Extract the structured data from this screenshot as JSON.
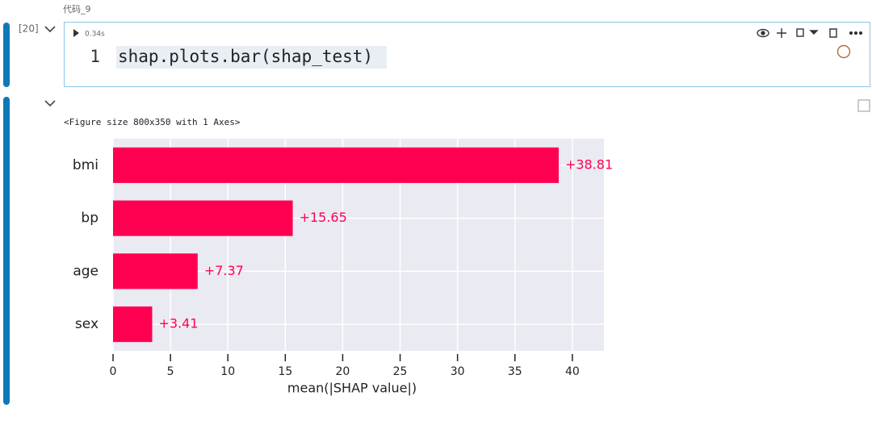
{
  "cell": {
    "label": "代码_9",
    "exec_count": "[20]",
    "time": "0.34s",
    "line_no": "1",
    "code": "shap.plots.bar(shap_test)"
  },
  "output": {
    "text": "<Figure size 800x350 with 1 Axes>"
  },
  "chart_data": {
    "type": "hbar",
    "categories": [
      "bmi",
      "bp",
      "age",
      "sex"
    ],
    "values": [
      38.81,
      15.65,
      7.37,
      3.41
    ],
    "value_labels": [
      "+38.81",
      "+15.65",
      "+7.37",
      "+3.41"
    ],
    "color": "#ff0051",
    "xlabel": "mean(|SHAP value|)",
    "xlim": [
      0,
      42.75
    ],
    "xticks": [
      0,
      5,
      10,
      15,
      20,
      25,
      30,
      35,
      40
    ],
    "grid": true
  }
}
